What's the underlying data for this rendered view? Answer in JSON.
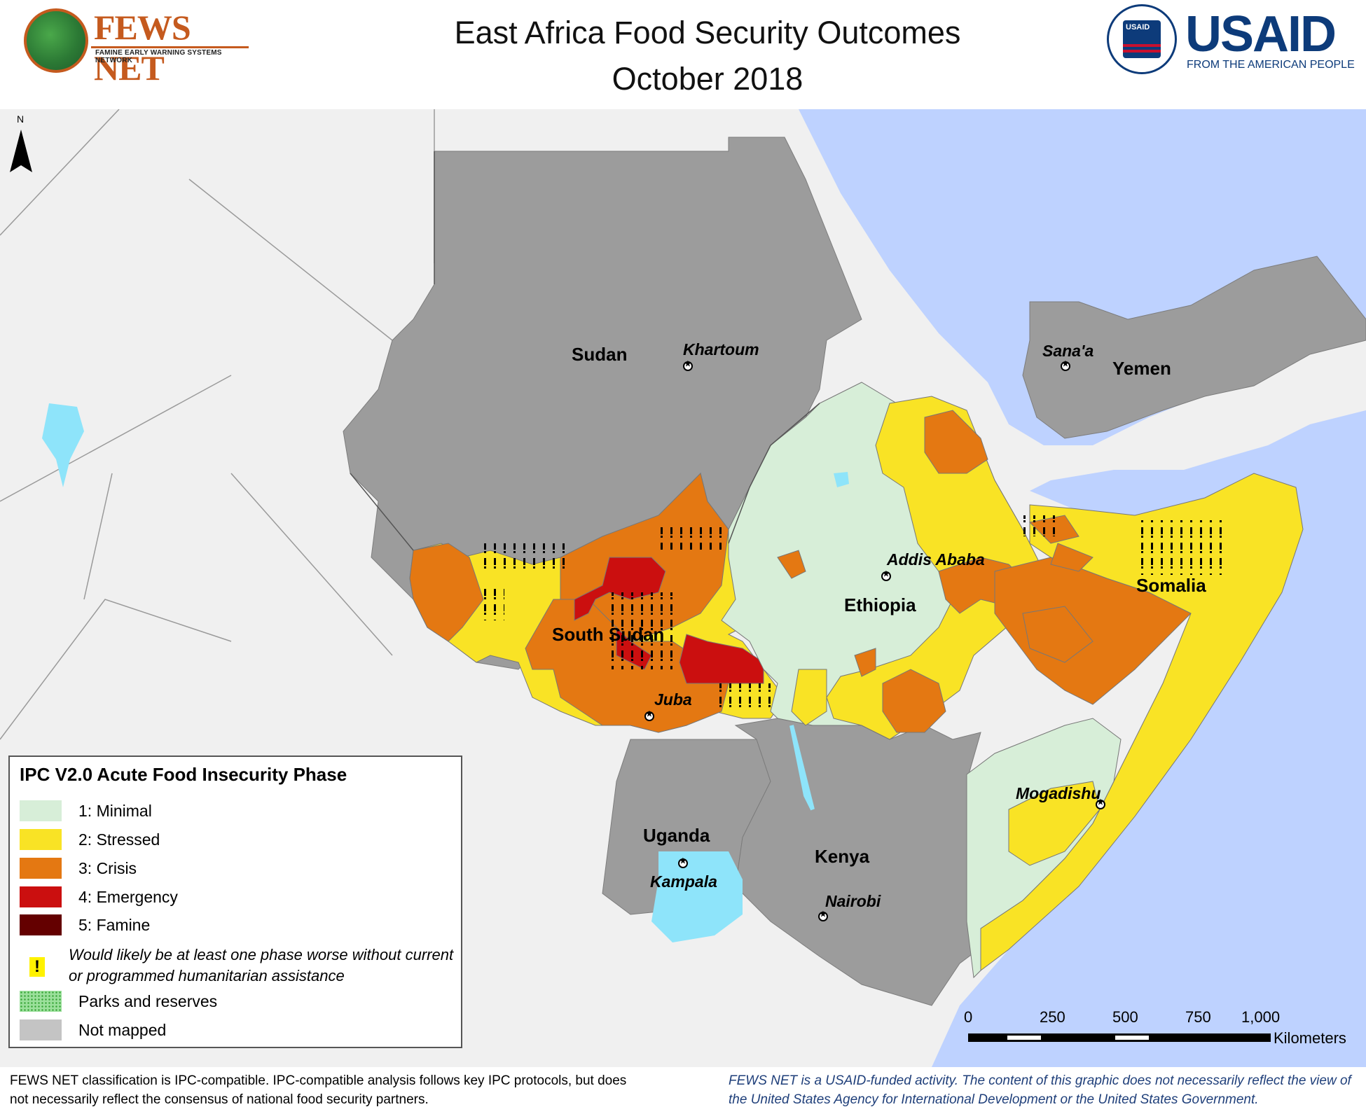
{
  "header": {
    "title_line1": "East Africa Food Security Outcomes",
    "title_line2": "October 2018",
    "fews_logo": {
      "name": "FEWS NET",
      "subtitle": "FAMINE EARLY WARNING SYSTEMS NETWORK"
    },
    "usaid_logo": {
      "name": "USAID",
      "tagline": "FROM THE AMERICAN PEOPLE",
      "seal_text": "USAID"
    }
  },
  "map": {
    "north_label": "N",
    "countries": {
      "sudan": "Sudan",
      "south_sudan": "South Sudan",
      "ethiopia": "Ethiopia",
      "somalia": "Somalia",
      "yemen": "Yemen",
      "uganda": "Uganda",
      "kenya": "Kenya"
    },
    "cities": {
      "khartoum": "Khartoum",
      "sanaa": "Sana'a",
      "addis_ababa": "Addis Ababa",
      "juba": "Juba",
      "mogadishu": "Mogadishu",
      "kampala": "Kampala",
      "nairobi": "Nairobi"
    },
    "colors": {
      "water": "#bed2ff",
      "not_mapped": "#9c9c9c",
      "background_land": "#f0f0f0",
      "lakes": "#8ee4fa"
    }
  },
  "legend": {
    "title": "IPC V2.0 Acute Food Insecurity Phase",
    "items": [
      {
        "label": "1: Minimal",
        "color": "#d7eed8"
      },
      {
        "label": "2: Stressed",
        "color": "#f9e325"
      },
      {
        "label": "3: Crisis",
        "color": "#e47812"
      },
      {
        "label": "4: Emergency",
        "color": "#cb0f0f"
      },
      {
        "label": "5: Famine",
        "color": "#640000"
      }
    ],
    "assistance_note": "Would likely be at least one phase worse without current or programmed humanitarian assistance",
    "assistance_symbol": "!",
    "parks_label": "Parks and reserves",
    "parks_color": "#9be09b",
    "not_mapped_label": "Not mapped",
    "not_mapped_color": "#c4c4c4"
  },
  "scale": {
    "ticks": [
      "0",
      "250",
      "500",
      "750",
      "1,000"
    ],
    "unit": "Kilometers"
  },
  "footer": {
    "left": "FEWS NET classification is IPC-compatible. IPC-compatible analysis follows key IPC protocols, but does not necessarily reflect the consensus of national food security partners.",
    "right": "FEWS NET is a USAID-funded activity. The content of this graphic does not necessarily reflect the view of the United States Agency for International Development or the United States Government."
  }
}
